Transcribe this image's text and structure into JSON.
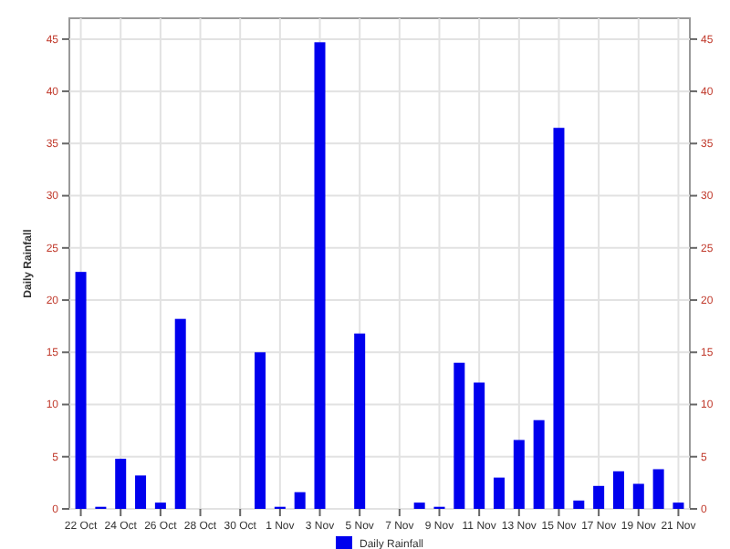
{
  "chart_data": {
    "type": "bar",
    "ylabel": "Daily Rainfall",
    "categories": [
      "22 Oct",
      null,
      "24 Oct",
      null,
      "26 Oct",
      null,
      "28 Oct",
      null,
      "30 Oct",
      null,
      "1 Nov",
      null,
      "3 Nov",
      null,
      "5 Nov",
      null,
      "7 Nov",
      null,
      "9 Nov",
      null,
      "11 Nov",
      null,
      "13 Nov",
      null,
      "15 Nov",
      null,
      "17 Nov",
      null,
      "19 Nov",
      null,
      "21 Nov"
    ],
    "series": [
      {
        "name": "Daily Rainfall",
        "color": "#0000ee",
        "values": [
          22.7,
          0.2,
          4.8,
          3.2,
          0.6,
          18.2,
          0,
          0,
          0,
          15.0,
          0.2,
          1.6,
          44.7,
          0,
          16.8,
          0,
          0,
          0.6,
          0.2,
          14.0,
          12.1,
          3.0,
          6.6,
          8.5,
          36.5,
          0.8,
          2.2,
          3.6,
          2.4,
          3.8,
          0.6
        ]
      }
    ],
    "ylim": [
      0,
      47
    ],
    "yticks": [
      0,
      5,
      10,
      15,
      20,
      25,
      30,
      35,
      40,
      45
    ],
    "y2lim": [
      0,
      47
    ],
    "y2ticks": [
      0,
      5,
      10,
      15,
      20,
      25,
      30,
      35,
      40,
      45
    ],
    "grid": true,
    "legend": "bottom"
  }
}
